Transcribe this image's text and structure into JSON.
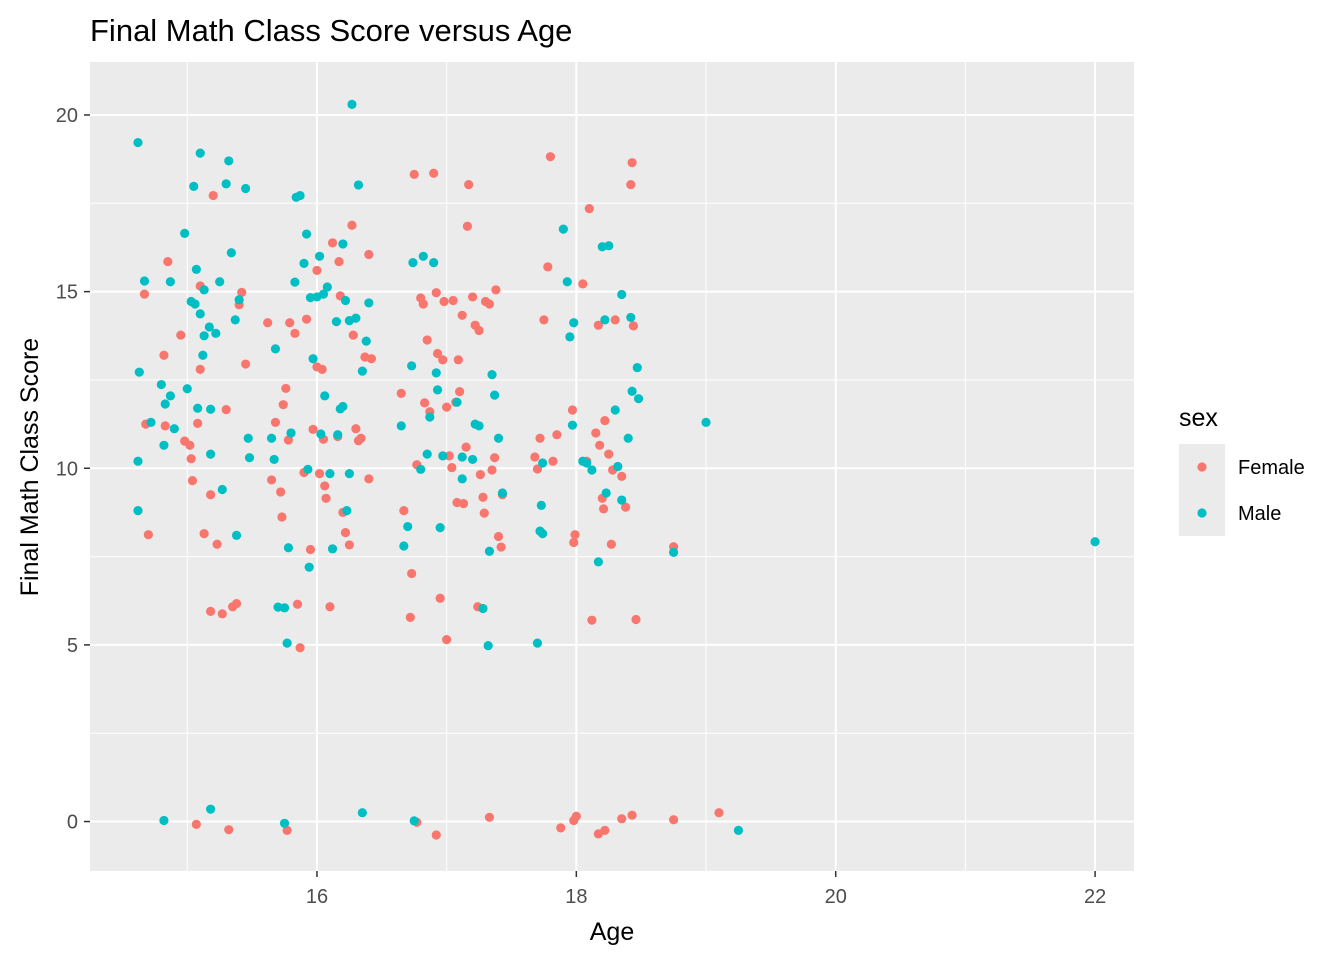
{
  "chart_data": {
    "type": "scatter",
    "title": "Final Math Class Score versus Age",
    "xlabel": "Age",
    "ylabel": "Final Math Class Score",
    "xlim": [
      14.25,
      22.3
    ],
    "ylim": [
      -1.4,
      21.5
    ],
    "x_ticks": [
      "16",
      "18",
      "20",
      "22"
    ],
    "x_tick_values": [
      16,
      18,
      20,
      22
    ],
    "y_ticks": [
      "0",
      "5",
      "10",
      "15",
      "20"
    ],
    "y_tick_values": [
      0,
      5,
      10,
      15,
      20
    ],
    "x_minor_breaks": [
      15,
      17,
      19,
      21
    ],
    "y_minor_breaks": [
      2.5,
      7.5,
      12.5,
      17.5
    ],
    "grid": true,
    "legend_position": "right",
    "legend_title": "sex",
    "series": [
      {
        "name": "Female",
        "color": "#F8766D",
        "points": [
          [
            14.67,
            14.93
          ],
          [
            14.85,
            15.85
          ],
          [
            14.95,
            13.77
          ],
          [
            14.82,
            13.2
          ],
          [
            14.83,
            11.2
          ],
          [
            14.68,
            11.25
          ],
          [
            14.98,
            10.77
          ],
          [
            15.02,
            10.65
          ],
          [
            15.03,
            10.27
          ],
          [
            15.04,
            9.65
          ],
          [
            14.7,
            8.12
          ],
          [
            15.08,
            11.27
          ],
          [
            15.1,
            12.8
          ],
          [
            15.1,
            15.16
          ],
          [
            15.2,
            17.72
          ],
          [
            15.18,
            9.25
          ],
          [
            15.23,
            7.85
          ],
          [
            15.27,
            5.88
          ],
          [
            15.3,
            11.66
          ],
          [
            15.35,
            6.08
          ],
          [
            15.38,
            6.17
          ],
          [
            15.4,
            14.63
          ],
          [
            15.42,
            14.98
          ],
          [
            15.45,
            12.95
          ],
          [
            15.18,
            5.95
          ],
          [
            15.13,
            8.15
          ],
          [
            15.07,
            -0.08
          ],
          [
            15.32,
            -0.23
          ],
          [
            15.62,
            14.12
          ],
          [
            15.65,
            9.67
          ],
          [
            15.68,
            11.3
          ],
          [
            15.72,
            9.33
          ],
          [
            15.73,
            8.62
          ],
          [
            15.74,
            11.8
          ],
          [
            15.76,
            12.26
          ],
          [
            15.78,
            10.8
          ],
          [
            15.79,
            14.12
          ],
          [
            15.83,
            13.82
          ],
          [
            15.85,
            6.15
          ],
          [
            15.87,
            4.92
          ],
          [
            15.9,
            9.88
          ],
          [
            15.92,
            14.22
          ],
          [
            15.95,
            7.7
          ],
          [
            15.97,
            11.1
          ],
          [
            16.0,
            15.6
          ],
          [
            16.0,
            12.87
          ],
          [
            16.02,
            9.85
          ],
          [
            16.04,
            12.8
          ],
          [
            16.05,
            10.82
          ],
          [
            16.06,
            9.5
          ],
          [
            16.07,
            9.15
          ],
          [
            16.1,
            6.08
          ],
          [
            16.12,
            16.38
          ],
          [
            16.16,
            10.9
          ],
          [
            16.17,
            15.85
          ],
          [
            16.18,
            14.88
          ],
          [
            16.2,
            8.75
          ],
          [
            16.22,
            8.18
          ],
          [
            16.25,
            7.83
          ],
          [
            16.27,
            16.88
          ],
          [
            16.28,
            13.77
          ],
          [
            16.3,
            11.12
          ],
          [
            16.32,
            10.78
          ],
          [
            16.34,
            10.85
          ],
          [
            16.37,
            13.15
          ],
          [
            16.4,
            16.05
          ],
          [
            16.42,
            13.1
          ],
          [
            16.4,
            9.7
          ],
          [
            15.77,
            -0.25
          ],
          [
            16.65,
            12.12
          ],
          [
            16.67,
            8.8
          ],
          [
            16.72,
            5.78
          ],
          [
            16.73,
            7.02
          ],
          [
            16.75,
            18.32
          ],
          [
            16.77,
            10.1
          ],
          [
            16.8,
            14.82
          ],
          [
            16.82,
            14.65
          ],
          [
            16.83,
            11.85
          ],
          [
            16.85,
            13.63
          ],
          [
            16.87,
            11.6
          ],
          [
            16.9,
            18.35
          ],
          [
            16.92,
            14.97
          ],
          [
            16.93,
            13.25
          ],
          [
            16.95,
            6.32
          ],
          [
            16.97,
            13.07
          ],
          [
            16.98,
            14.72
          ],
          [
            17.0,
            5.15
          ],
          [
            17.0,
            11.73
          ],
          [
            17.02,
            10.35
          ],
          [
            17.04,
            10.02
          ],
          [
            17.05,
            14.75
          ],
          [
            17.07,
            11.87
          ],
          [
            17.08,
            9.03
          ],
          [
            17.09,
            13.07
          ],
          [
            17.1,
            12.17
          ],
          [
            17.12,
            14.33
          ],
          [
            17.13,
            9.0
          ],
          [
            17.15,
            10.6
          ],
          [
            17.16,
            16.85
          ],
          [
            17.17,
            18.03
          ],
          [
            17.2,
            14.85
          ],
          [
            17.22,
            14.05
          ],
          [
            17.24,
            6.08
          ],
          [
            17.25,
            13.9
          ],
          [
            17.26,
            9.82
          ],
          [
            17.28,
            9.18
          ],
          [
            17.29,
            8.73
          ],
          [
            17.3,
            14.72
          ],
          [
            17.33,
            14.65
          ],
          [
            17.35,
            9.95
          ],
          [
            17.37,
            10.3
          ],
          [
            17.38,
            15.05
          ],
          [
            17.4,
            8.07
          ],
          [
            17.42,
            7.77
          ],
          [
            17.43,
            9.25
          ],
          [
            16.77,
            -0.02
          ],
          [
            16.92,
            -0.38
          ],
          [
            17.33,
            0.12
          ],
          [
            17.68,
            10.32
          ],
          [
            17.7,
            9.98
          ],
          [
            17.72,
            10.85
          ],
          [
            17.75,
            14.2
          ],
          [
            17.78,
            15.7
          ],
          [
            17.8,
            18.82
          ],
          [
            17.82,
            10.2
          ],
          [
            17.85,
            10.95
          ],
          [
            17.97,
            11.65
          ],
          [
            17.98,
            7.9
          ],
          [
            17.99,
            8.12
          ],
          [
            18.05,
            15.22
          ],
          [
            18.08,
            10.2
          ],
          [
            18.1,
            17.35
          ],
          [
            18.12,
            5.7
          ],
          [
            18.15,
            11.0
          ],
          [
            18.17,
            14.05
          ],
          [
            18.18,
            10.65
          ],
          [
            18.2,
            9.15
          ],
          [
            18.21,
            8.85
          ],
          [
            18.22,
            11.35
          ],
          [
            18.25,
            10.4
          ],
          [
            18.27,
            7.85
          ],
          [
            18.28,
            9.95
          ],
          [
            18.3,
            14.2
          ],
          [
            18.35,
            9.77
          ],
          [
            18.38,
            8.9
          ],
          [
            18.42,
            18.03
          ],
          [
            18.43,
            18.65
          ],
          [
            18.44,
            14.03
          ],
          [
            18.46,
            5.72
          ],
          [
            17.88,
            -0.18
          ],
          [
            17.98,
            0.03
          ],
          [
            18.0,
            0.15
          ],
          [
            18.17,
            -0.35
          ],
          [
            18.22,
            -0.25
          ],
          [
            18.35,
            0.08
          ],
          [
            18.43,
            0.18
          ],
          [
            18.75,
            7.78
          ],
          [
            18.75,
            0.05
          ],
          [
            19.1,
            0.25
          ]
        ]
      },
      {
        "name": "Male",
        "color": "#00BFC4",
        "points": [
          [
            14.62,
            19.22
          ],
          [
            14.62,
            8.8
          ],
          [
            14.62,
            10.2
          ],
          [
            14.63,
            12.72
          ],
          [
            14.67,
            15.3
          ],
          [
            14.72,
            11.3
          ],
          [
            14.8,
            12.37
          ],
          [
            14.82,
            10.65
          ],
          [
            14.83,
            11.82
          ],
          [
            14.87,
            12.05
          ],
          [
            14.87,
            15.28
          ],
          [
            14.9,
            11.12
          ],
          [
            14.98,
            16.65
          ],
          [
            15.0,
            12.25
          ],
          [
            15.03,
            14.72
          ],
          [
            15.05,
            17.98
          ],
          [
            15.06,
            14.65
          ],
          [
            15.07,
            15.63
          ],
          [
            15.08,
            11.7
          ],
          [
            15.1,
            18.92
          ],
          [
            15.1,
            14.37
          ],
          [
            15.12,
            13.2
          ],
          [
            15.13,
            13.75
          ],
          [
            15.13,
            15.05
          ],
          [
            15.17,
            14.0
          ],
          [
            15.18,
            11.67
          ],
          [
            15.18,
            10.4
          ],
          [
            15.22,
            13.82
          ],
          [
            15.25,
            15.28
          ],
          [
            15.27,
            9.4
          ],
          [
            15.3,
            18.05
          ],
          [
            15.32,
            18.7
          ],
          [
            15.34,
            16.1
          ],
          [
            15.37,
            14.2
          ],
          [
            15.38,
            8.1
          ],
          [
            15.4,
            14.77
          ],
          [
            15.45,
            17.92
          ],
          [
            15.47,
            10.85
          ],
          [
            15.48,
            10.3
          ],
          [
            14.82,
            0.03
          ],
          [
            15.18,
            0.35
          ],
          [
            15.65,
            10.85
          ],
          [
            15.67,
            10.25
          ],
          [
            15.68,
            13.38
          ],
          [
            15.7,
            6.07
          ],
          [
            15.75,
            6.05
          ],
          [
            15.77,
            5.05
          ],
          [
            15.78,
            7.75
          ],
          [
            15.8,
            11.0
          ],
          [
            15.83,
            15.27
          ],
          [
            15.84,
            17.67
          ],
          [
            15.87,
            17.72
          ],
          [
            15.9,
            15.8
          ],
          [
            15.92,
            16.63
          ],
          [
            15.93,
            9.97
          ],
          [
            15.94,
            7.2
          ],
          [
            15.95,
            14.83
          ],
          [
            15.97,
            13.1
          ],
          [
            16.0,
            14.85
          ],
          [
            16.02,
            16.0
          ],
          [
            16.03,
            10.97
          ],
          [
            16.05,
            14.93
          ],
          [
            16.06,
            12.05
          ],
          [
            16.08,
            15.13
          ],
          [
            16.1,
            9.85
          ],
          [
            16.12,
            7.72
          ],
          [
            16.15,
            14.15
          ],
          [
            16.16,
            10.95
          ],
          [
            16.18,
            11.68
          ],
          [
            16.2,
            16.35
          ],
          [
            16.2,
            11.75
          ],
          [
            16.22,
            14.75
          ],
          [
            16.23,
            8.8
          ],
          [
            16.25,
            14.18
          ],
          [
            16.25,
            9.85
          ],
          [
            16.27,
            20.3
          ],
          [
            16.3,
            14.25
          ],
          [
            16.32,
            18.02
          ],
          [
            16.35,
            12.75
          ],
          [
            16.38,
            13.6
          ],
          [
            16.4,
            14.68
          ],
          [
            15.75,
            -0.05
          ],
          [
            16.35,
            0.25
          ],
          [
            16.65,
            11.2
          ],
          [
            16.67,
            7.8
          ],
          [
            16.7,
            8.35
          ],
          [
            16.73,
            12.9
          ],
          [
            16.74,
            15.82
          ],
          [
            16.8,
            9.97
          ],
          [
            16.82,
            16.0
          ],
          [
            16.85,
            10.4
          ],
          [
            16.87,
            11.45
          ],
          [
            16.9,
            15.82
          ],
          [
            16.92,
            12.7
          ],
          [
            16.93,
            12.22
          ],
          [
            16.95,
            8.32
          ],
          [
            16.97,
            10.35
          ],
          [
            17.08,
            11.87
          ],
          [
            17.12,
            10.32
          ],
          [
            17.12,
            9.7
          ],
          [
            17.2,
            10.25
          ],
          [
            17.22,
            11.25
          ],
          [
            17.25,
            11.2
          ],
          [
            17.28,
            6.03
          ],
          [
            17.32,
            4.98
          ],
          [
            17.33,
            7.65
          ],
          [
            17.35,
            12.65
          ],
          [
            17.37,
            12.07
          ],
          [
            17.4,
            10.85
          ],
          [
            17.43,
            9.3
          ],
          [
            16.75,
            0.02
          ],
          [
            17.7,
            5.05
          ],
          [
            17.72,
            8.22
          ],
          [
            17.73,
            8.95
          ],
          [
            17.74,
            8.15
          ],
          [
            17.74,
            10.15
          ],
          [
            17.9,
            16.77
          ],
          [
            17.93,
            15.28
          ],
          [
            17.95,
            13.72
          ],
          [
            17.97,
            11.22
          ],
          [
            17.98,
            14.12
          ],
          [
            18.05,
            10.2
          ],
          [
            18.08,
            10.15
          ],
          [
            18.12,
            9.95
          ],
          [
            18.17,
            7.35
          ],
          [
            18.2,
            16.27
          ],
          [
            18.22,
            14.2
          ],
          [
            18.23,
            9.3
          ],
          [
            18.25,
            16.3
          ],
          [
            18.3,
            11.65
          ],
          [
            18.32,
            10.05
          ],
          [
            18.35,
            14.92
          ],
          [
            18.35,
            9.1
          ],
          [
            18.4,
            10.85
          ],
          [
            18.42,
            14.27
          ],
          [
            18.43,
            12.18
          ],
          [
            18.47,
            12.85
          ],
          [
            18.48,
            11.97
          ],
          [
            18.75,
            7.62
          ],
          [
            19.0,
            11.3
          ],
          [
            19.25,
            -0.25
          ],
          [
            22.0,
            7.92
          ]
        ]
      }
    ]
  }
}
